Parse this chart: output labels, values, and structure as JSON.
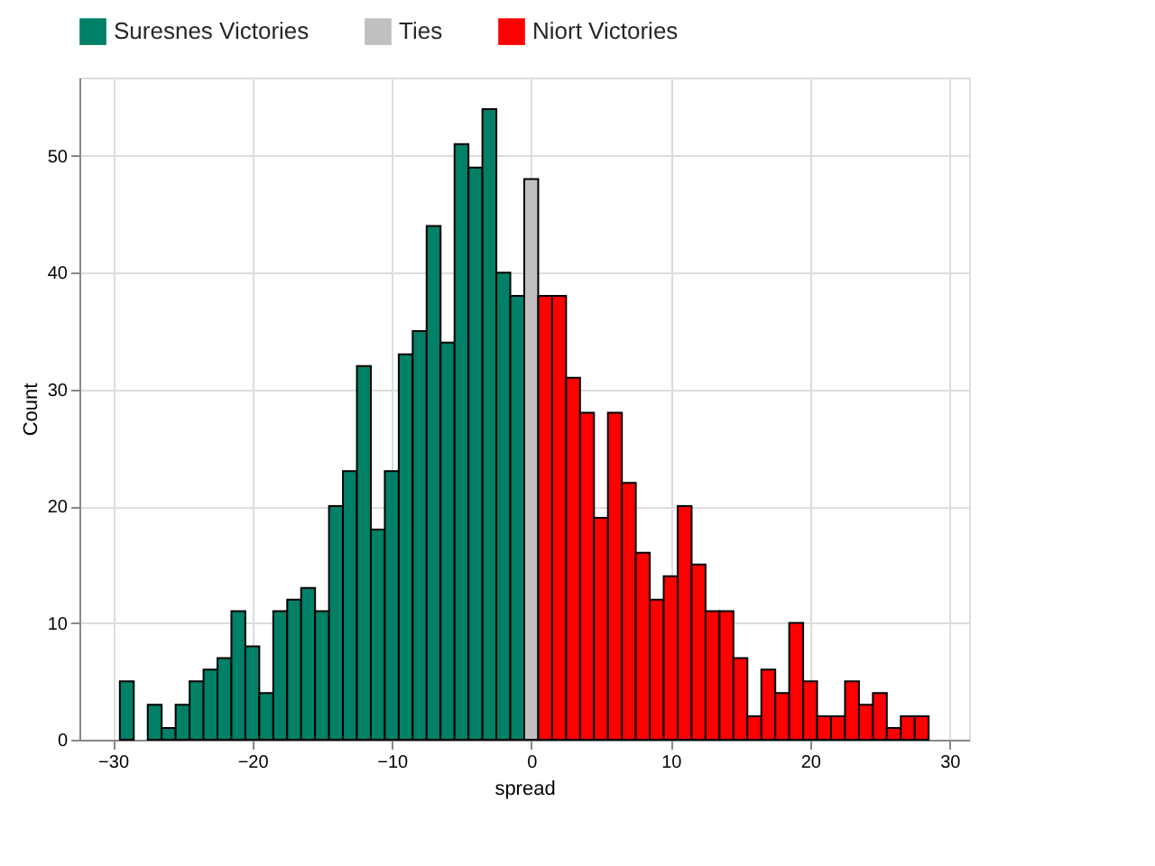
{
  "chart_data": {
    "type": "bar",
    "xlabel": "spread",
    "ylabel": "Count",
    "series": [
      {
        "name": "Suresnes Victories",
        "color": "#008066",
        "x": [
          -29,
          -28,
          -27,
          -26,
          -25,
          -24,
          -23,
          -22,
          -21,
          -20,
          -19,
          -18,
          -17,
          -16,
          -15,
          -14,
          -13,
          -12,
          -11,
          -10,
          -9,
          -8,
          -7,
          -6,
          -5,
          -4,
          -3,
          -2,
          -1
        ],
        "values": [
          5,
          0,
          3,
          1,
          3,
          5,
          6,
          7,
          11,
          8,
          4,
          11,
          12,
          13,
          11,
          20,
          23,
          32,
          18,
          23,
          33,
          35,
          44,
          34,
          51,
          49,
          54,
          40,
          38
        ]
      },
      {
        "name": "Ties",
        "color": "#c0c0c0",
        "x": [
          0
        ],
        "values": [
          48
        ]
      },
      {
        "name": "Niort Victories",
        "color": "#ff0000",
        "x": [
          1,
          2,
          3,
          4,
          5,
          6,
          7,
          8,
          9,
          10,
          11,
          12,
          13,
          14,
          15,
          16,
          17,
          18,
          19,
          20,
          21,
          22,
          23,
          24,
          25,
          26,
          27,
          28
        ],
        "values": [
          38,
          38,
          31,
          28,
          19,
          28,
          22,
          16,
          12,
          14,
          20,
          15,
          11,
          11,
          7,
          2,
          6,
          4,
          10,
          5,
          2,
          2,
          5,
          3,
          4,
          1,
          2,
          2
        ]
      }
    ],
    "xlim": [
      -32.4,
      31.4
    ],
    "xticks": [
      -30,
      -20,
      -10,
      0,
      10,
      20,
      30
    ],
    "ylim": [
      0,
      56.7
    ],
    "yticks": [
      0,
      10,
      20,
      30,
      40,
      50
    ],
    "grid": true,
    "legend": "top"
  }
}
